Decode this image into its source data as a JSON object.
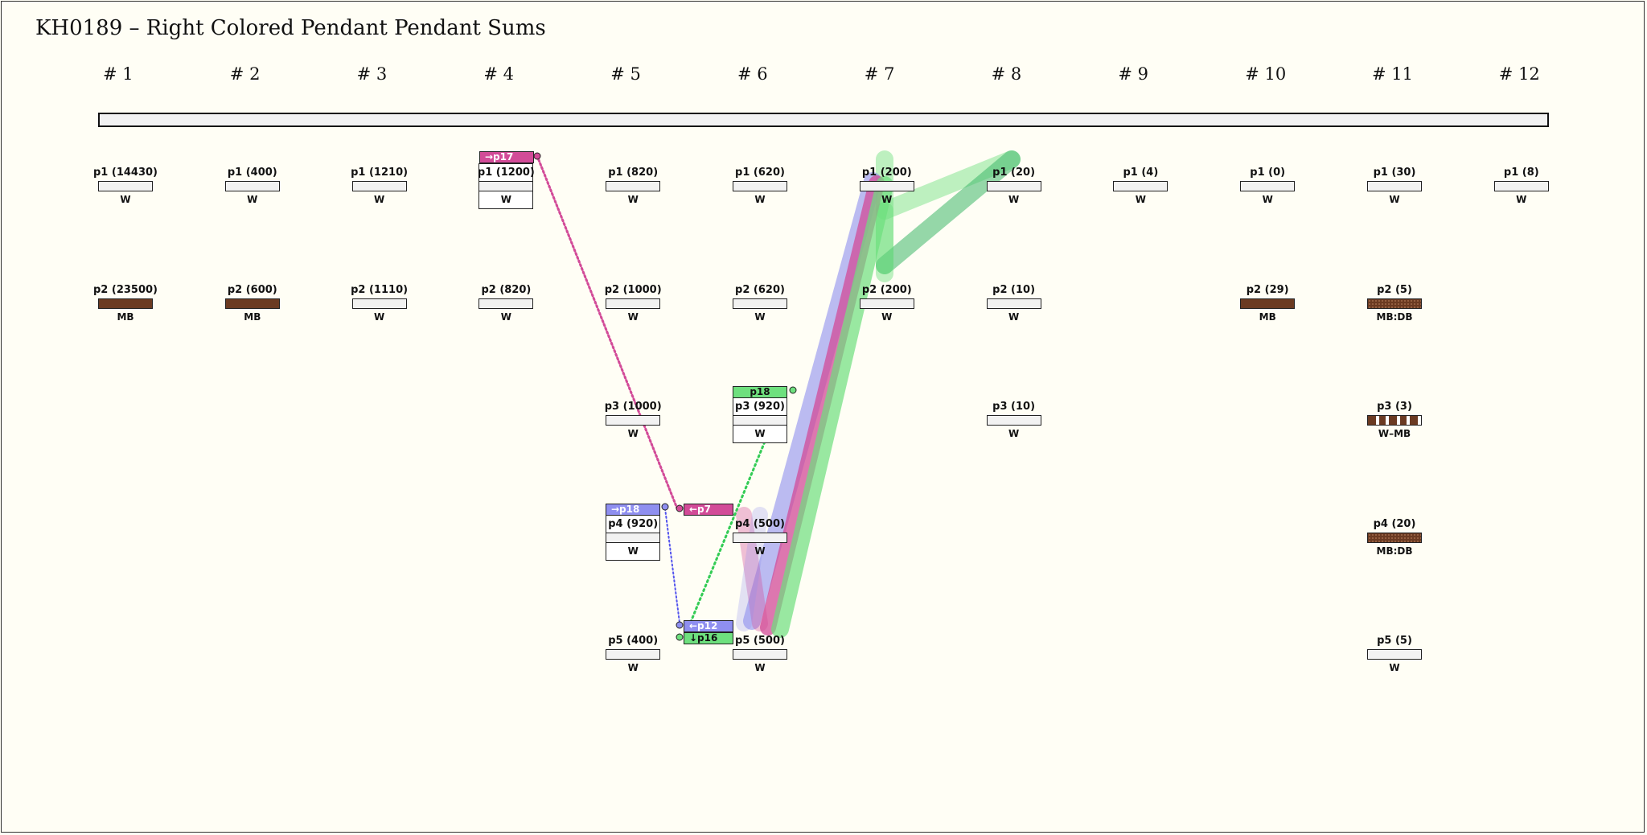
{
  "title": "KH0189 – Right Colored Pendant Pendant Sums",
  "columns": [
    "# 1",
    "# 2",
    "# 3",
    "# 4",
    "# 5",
    "# 6",
    "# 7",
    "# 8",
    "# 9",
    "# 10",
    "# 11",
    "# 12"
  ],
  "pendants": [
    {
      "id": "c1-p1",
      "label": "p1 (14430)",
      "color": "W",
      "col": 0,
      "row": 0,
      "fill": "white"
    },
    {
      "id": "c1-p2",
      "label": "p2 (23500)",
      "color": "MB",
      "col": 0,
      "row": 1,
      "fill": "brown"
    },
    {
      "id": "c2-p1",
      "label": "p1 (400)",
      "color": "W",
      "col": 1,
      "row": 0,
      "fill": "white"
    },
    {
      "id": "c2-p2",
      "label": "p2 (600)",
      "color": "MB",
      "col": 1,
      "row": 1,
      "fill": "brown"
    },
    {
      "id": "c3-p1",
      "label": "p1 (1210)",
      "color": "W",
      "col": 2,
      "row": 0,
      "fill": "white"
    },
    {
      "id": "c3-p2",
      "label": "p2 (1110)",
      "color": "W",
      "col": 2,
      "row": 1,
      "fill": "white"
    },
    {
      "id": "c4-p1",
      "label": "p1 (1200)",
      "color": "W",
      "col": 3,
      "row": 0,
      "fill": "white",
      "boxed": true
    },
    {
      "id": "c4-p2",
      "label": "p2 (820)",
      "color": "W",
      "col": 3,
      "row": 1,
      "fill": "white"
    },
    {
      "id": "c5-p1",
      "label": "p1 (820)",
      "color": "W",
      "col": 4,
      "row": 0,
      "fill": "white"
    },
    {
      "id": "c5-p2",
      "label": "p2 (1000)",
      "color": "W",
      "col": 4,
      "row": 1,
      "fill": "white"
    },
    {
      "id": "c5-p3",
      "label": "p3 (1000)",
      "color": "W",
      "col": 4,
      "row": 2,
      "fill": "white"
    },
    {
      "id": "c5-p4",
      "label": "p4 (920)",
      "color": "W",
      "col": 4,
      "row": 3,
      "fill": "white",
      "boxed": true
    },
    {
      "id": "c5-p5",
      "label": "p5 (400)",
      "color": "W",
      "col": 4,
      "row": 4,
      "fill": "white"
    },
    {
      "id": "c6-p1",
      "label": "p1 (620)",
      "color": "W",
      "col": 5,
      "row": 0,
      "fill": "white"
    },
    {
      "id": "c6-p2",
      "label": "p2 (620)",
      "color": "W",
      "col": 5,
      "row": 1,
      "fill": "white"
    },
    {
      "id": "c6-p3",
      "label": "p3 (920)",
      "color": "W",
      "col": 5,
      "row": 2,
      "fill": "white",
      "boxed": true
    },
    {
      "id": "c6-p4",
      "label": "p4 (500)",
      "color": "W",
      "col": 5,
      "row": 3,
      "fill": "white"
    },
    {
      "id": "c6-p5",
      "label": "p5 (500)",
      "color": "W",
      "col": 5,
      "row": 4,
      "fill": "white"
    },
    {
      "id": "c7-p1",
      "label": "p1 (200)",
      "color": "W",
      "col": 6,
      "row": 0,
      "fill": "white"
    },
    {
      "id": "c7-p2",
      "label": "p2 (200)",
      "color": "W",
      "col": 6,
      "row": 1,
      "fill": "white"
    },
    {
      "id": "c8-p1",
      "label": "p1 (20)",
      "color": "W",
      "col": 7,
      "row": 0,
      "fill": "white"
    },
    {
      "id": "c8-p2",
      "label": "p2 (10)",
      "color": "W",
      "col": 7,
      "row": 1,
      "fill": "white"
    },
    {
      "id": "c8-p3",
      "label": "p3 (10)",
      "color": "W",
      "col": 7,
      "row": 2,
      "fill": "white"
    },
    {
      "id": "c9-p1",
      "label": "p1 (4)",
      "color": "W",
      "col": 8,
      "row": 0,
      "fill": "white"
    },
    {
      "id": "c10-p1",
      "label": "p1 (0)",
      "color": "W",
      "col": 9,
      "row": 0,
      "fill": "white"
    },
    {
      "id": "c10-p2",
      "label": "p2 (29)",
      "color": "MB",
      "col": 9,
      "row": 1,
      "fill": "brown"
    },
    {
      "id": "c11-p1",
      "label": "p1 (30)",
      "color": "W",
      "col": 10,
      "row": 0,
      "fill": "white"
    },
    {
      "id": "c11-p2",
      "label": "p2 (5)",
      "color": "MB:DB",
      "col": 10,
      "row": 1,
      "fill": "dotted"
    },
    {
      "id": "c11-p3",
      "label": "p3 (3)",
      "color": "W–MB",
      "col": 10,
      "row": 2,
      "fill": "striped"
    },
    {
      "id": "c11-p4",
      "label": "p4 (20)",
      "color": "MB:DB",
      "col": 10,
      "row": 3,
      "fill": "dotted"
    },
    {
      "id": "c11-p5",
      "label": "p5 (5)",
      "color": "W",
      "col": 10,
      "row": 4,
      "fill": "white"
    },
    {
      "id": "c12-p1",
      "label": "p1 (8)",
      "color": "W",
      "col": 11,
      "row": 0,
      "fill": "white"
    }
  ],
  "tags": {
    "t_p17": "→p17",
    "t_p18_top": "p18",
    "t_p18_left": "→p18",
    "t_p7": "←p7",
    "t_p12": "←p12",
    "t_p16": "↓p16"
  },
  "colors": {
    "pink": "#d24b98",
    "blue": "#8f8ff0",
    "green": "#6ee07e",
    "dark_green": "#3fb86a",
    "brown": "#6b3a22"
  }
}
